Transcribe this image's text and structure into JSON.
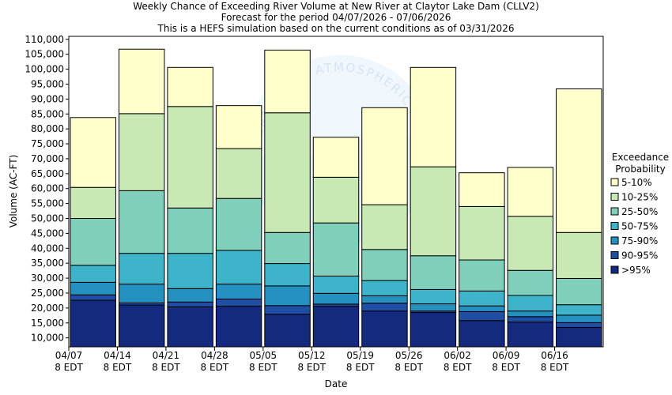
{
  "chart_data": {
    "type": "bar",
    "stacked": true,
    "title_lines": [
      "Weekly Chance of Exceeding River Volume at New River at Claytor Lake Dam (CLLV2)",
      "Forecast for the period 04/07/2026 - 07/06/2026",
      "This is a HEFS simulation based on the current conditions as of 03/31/2026"
    ],
    "xlabel": "Date",
    "ylabel": "Volume (AC-FT)",
    "ylim": [
      7000,
      111000
    ],
    "yticks": [
      10000,
      15000,
      20000,
      25000,
      30000,
      35000,
      40000,
      45000,
      50000,
      55000,
      60000,
      65000,
      70000,
      75000,
      80000,
      85000,
      90000,
      95000,
      100000,
      105000,
      110000
    ],
    "ytick_labels": [
      "10,000",
      "15,000",
      "20,000",
      "25,000",
      "30,000",
      "35,000",
      "40,000",
      "45,000",
      "50,000",
      "55,000",
      "60,000",
      "65,000",
      "70,000",
      "75,000",
      "80,000",
      "85,000",
      "90,000",
      "95,000",
      "100,000",
      "105,000",
      "110,000"
    ],
    "xtick_labels": [
      [
        "04/07",
        "8 EDT"
      ],
      [
        "04/14",
        "8 EDT"
      ],
      [
        "04/21",
        "8 EDT"
      ],
      [
        "04/28",
        "8 EDT"
      ],
      [
        "05/05",
        "8 EDT"
      ],
      [
        "05/12",
        "8 EDT"
      ],
      [
        "05/19",
        "8 EDT"
      ],
      [
        "05/26",
        "8 EDT"
      ],
      [
        "06/02",
        "8 EDT"
      ],
      [
        "06/09",
        "8 EDT"
      ],
      [
        "06/16",
        "8 EDT"
      ]
    ],
    "bands_bottom_to_top": [
      ">95%",
      "90-95%",
      "75-90%",
      "50-75%",
      "25-50%",
      "10-25%",
      "5-10%"
    ],
    "bars": [
      [
        22600,
        24400,
        28600,
        34300,
        50000,
        60400,
        83800
      ],
      [
        21000,
        21700,
        28000,
        38300,
        59300,
        85100,
        106700
      ],
      [
        20400,
        22000,
        26500,
        38300,
        53500,
        87500,
        100600
      ],
      [
        20600,
        23000,
        28000,
        39300,
        56700,
        73400,
        87800
      ],
      [
        17900,
        20800,
        27400,
        34900,
        45300,
        85400,
        106400
      ],
      [
        20600,
        21300,
        24900,
        30700,
        48500,
        63800,
        77200
      ],
      [
        19000,
        21600,
        24100,
        29200,
        39600,
        54600,
        87100
      ],
      [
        18500,
        19000,
        21400,
        26200,
        37500,
        67300,
        100600
      ],
      [
        15800,
        18800,
        20700,
        25700,
        36100,
        54000,
        65300
      ],
      [
        15300,
        17100,
        19000,
        24200,
        32600,
        50700,
        67100
      ],
      [
        13500,
        15100,
        17600,
        21100,
        29900,
        45300,
        93400
      ]
    ],
    "band_colors": [
      "#142a7e",
      "#1f4ea6",
      "#2591c0",
      "#3eb4cb",
      "#7fcfbb",
      "#c8e8b4",
      "#ffffcc"
    ],
    "legend": {
      "title_lines": [
        "Exceedance",
        "Probability"
      ],
      "entries": [
        "5-10%",
        "10-25%",
        "25-50%",
        "50-75%",
        "75-90%",
        "90-95%",
        ">95%"
      ],
      "entry_colors": [
        "#ffffcc",
        "#c8e8b4",
        "#7fcfbb",
        "#3eb4cb",
        "#2591c0",
        "#1f4ea6",
        "#142a7e"
      ],
      "placement": "right"
    },
    "watermark_text": "NATIONAL OCEANIC AND ATMOSPHERIC ADMINISTRATION"
  }
}
